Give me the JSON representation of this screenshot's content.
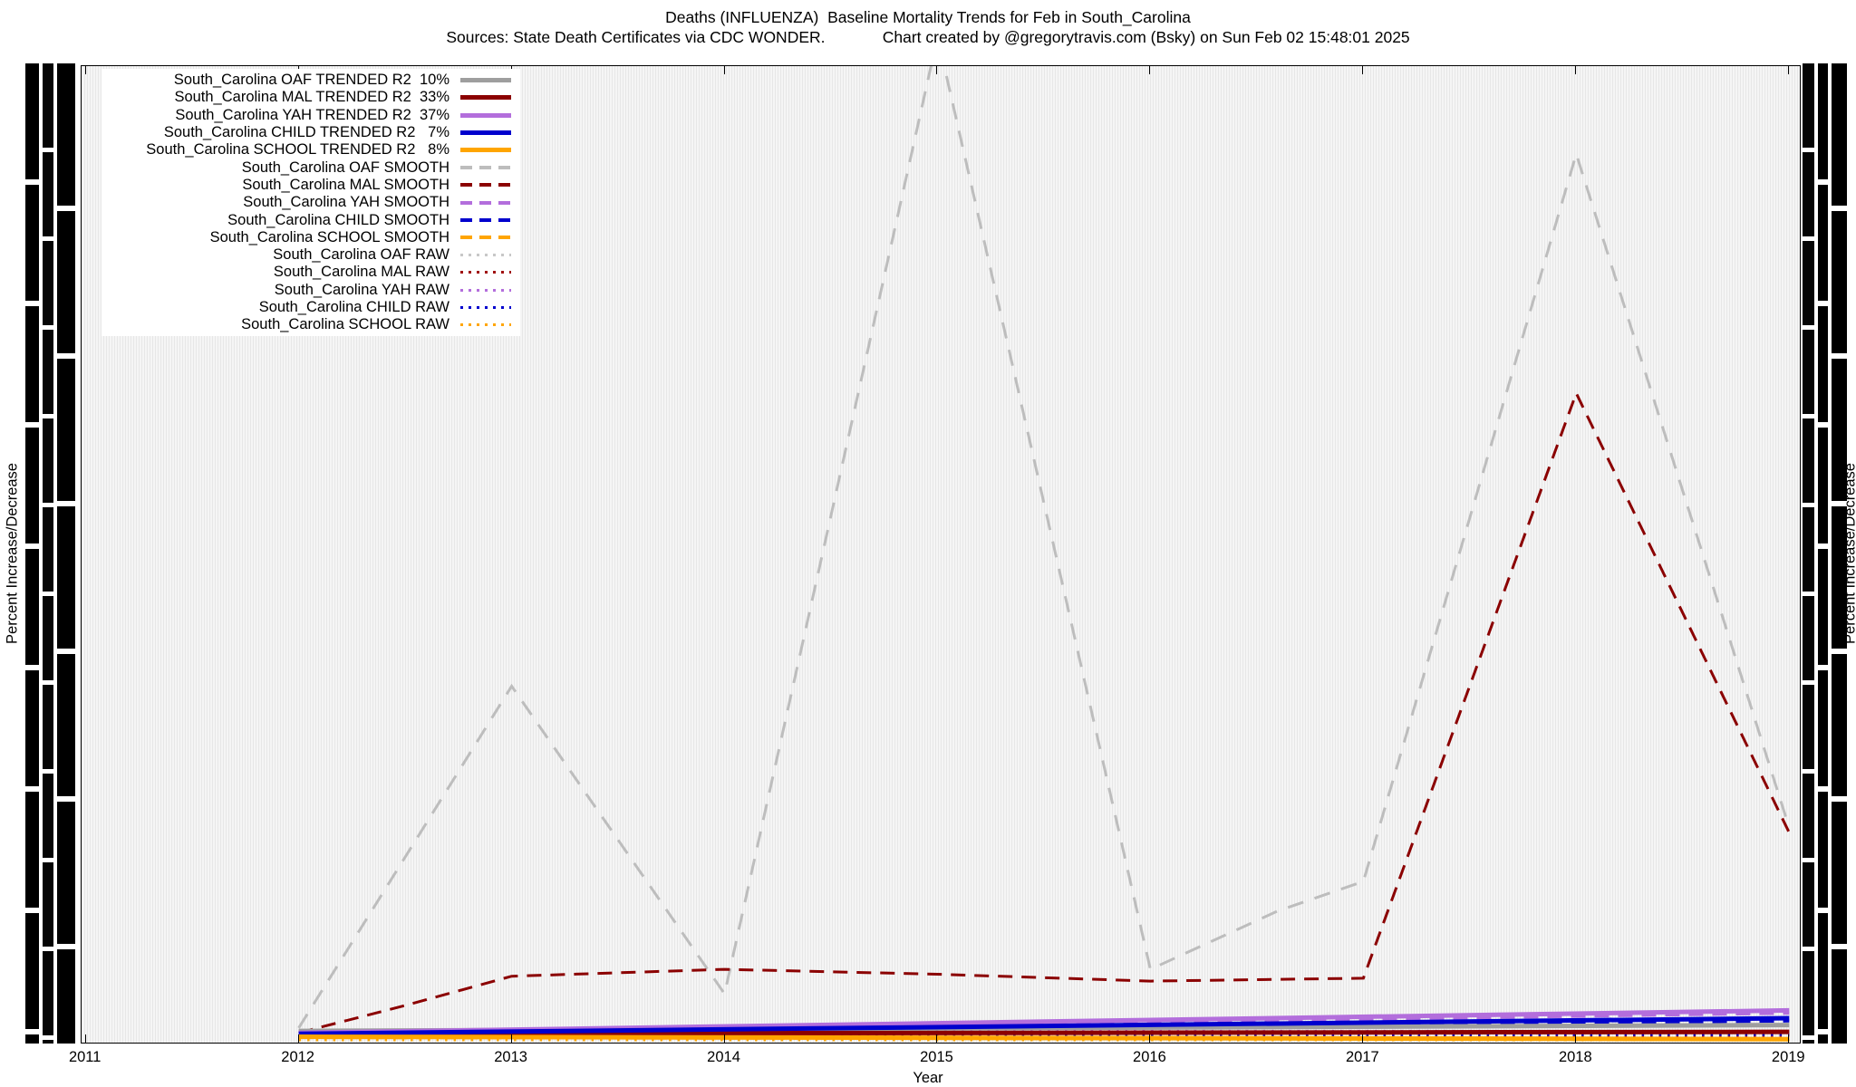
{
  "titles": {
    "title": "Deaths (INFLUENZA)  Baseline Mortality Trends for Feb in South_Carolina",
    "subtitle": "Sources: State Death Certificates via CDC WONDER.             Chart created by @gregorytravis.com (Bsky) on Sun Feb 02 15:48:01 2025"
  },
  "axes": {
    "xlabel": "Year",
    "ylabel_left": "Percent Increase/Decrease",
    "ylabel_right": "Percent Increase/Decrease"
  },
  "chart_data": {
    "type": "line",
    "title": "Deaths (INFLUENZA)  Baseline Mortality Trends for Feb in South_Carolina",
    "subtitle": "Sources: State Death Certificates via CDC WONDER.  Chart created by @gregorytravis.com (Bsky) on Sun Feb 02 15:48:01 2025",
    "xlabel": "Year",
    "ylabel": "Percent Increase/Decrease",
    "x_ticks": [
      2011,
      2012,
      2013,
      2014,
      2015,
      2016,
      2017,
      2018,
      2019
    ],
    "xlim": [
      2010.98,
      2019.05
    ],
    "ylim": [
      0,
      100
    ],
    "y_units_note": "y values normalized 0-100 = fraction of plot height; y tick labels overprinted/illegible in source",
    "grid": "fine vertical striping",
    "legend_position": "top-left",
    "series": [
      {
        "id": "oaf-trended",
        "label": "South_Carolina OAF TRENDED R2  10%",
        "color": "#9e9e9e",
        "width": 5,
        "dash": "",
        "legend_style": "solid",
        "z": 3,
        "x": [
          2012,
          2019
        ],
        "y": [
          1.2,
          1.8
        ]
      },
      {
        "id": "mal-trended",
        "label": "South_Carolina MAL TRENDED R2  33%",
        "color": "#8b0000",
        "width": 5,
        "dash": "",
        "legend_style": "solid",
        "z": 3,
        "x": [
          2012,
          2019
        ],
        "y": [
          0.9,
          1.1
        ]
      },
      {
        "id": "yah-trended",
        "label": "South_Carolina YAH TRENDED R2  37%",
        "color": "#b36edc",
        "width": 5,
        "dash": "",
        "legend_style": "solid",
        "z": 3,
        "x": [
          2012,
          2019
        ],
        "y": [
          1.0,
          3.3
        ]
      },
      {
        "id": "child-trended",
        "label": "South_Carolina CHILD TRENDED R2   7%",
        "color": "#0000cd",
        "width": 5,
        "dash": "",
        "legend_style": "solid",
        "z": 3,
        "x": [
          2012,
          2019
        ],
        "y": [
          0.9,
          2.5
        ]
      },
      {
        "id": "school-trended",
        "label": "South_Carolina SCHOOL TRENDED R2   8%",
        "color": "#ffa500",
        "width": 5,
        "dash": "",
        "legend_style": "solid",
        "z": 3,
        "x": [
          2012,
          2019
        ],
        "y": [
          0.6,
          0.35
        ]
      },
      {
        "id": "oaf-smooth",
        "label": "South_Carolina OAF SMOOTH",
        "color": "#bdbdbd",
        "width": 3,
        "dash": "18 13",
        "legend_style": "dashed",
        "z": 1,
        "x": [
          2012,
          2013,
          2014,
          2015,
          2016,
          2016.6,
          2017,
          2018,
          2019
        ],
        "y": [
          1.5,
          36.5,
          5,
          103,
          7.5,
          13.5,
          16.5,
          91,
          22
        ]
      },
      {
        "id": "mal-smooth",
        "label": "South_Carolina MAL SMOOTH",
        "color": "#8b0000",
        "width": 3,
        "dash": "16 10",
        "legend_style": "dashed",
        "z": 1,
        "x": [
          2012,
          2012.5,
          2013,
          2014,
          2015,
          2016,
          2017,
          2018,
          2019
        ],
        "y": [
          1.0,
          3.8,
          6.8,
          7.5,
          7.0,
          6.3,
          6.6,
          66.5,
          21.5
        ]
      },
      {
        "id": "yah-smooth",
        "label": "South_Carolina YAH SMOOTH",
        "color": "#b36edc",
        "width": 3,
        "dash": "16 10",
        "legend_style": "dashed",
        "z": 1,
        "x": [
          2012,
          2019
        ],
        "y": [
          0.8,
          3.0
        ]
      },
      {
        "id": "child-smooth",
        "label": "South_Carolina CHILD SMOOTH",
        "color": "#0000cd",
        "width": 3,
        "dash": "16 10",
        "legend_style": "dashed",
        "z": 1,
        "x": [
          2012,
          2019
        ],
        "y": [
          0.8,
          2.2
        ]
      },
      {
        "id": "school-smooth",
        "label": "South_Carolina SCHOOL SMOOTH",
        "color": "#ffa500",
        "width": 3,
        "dash": "16 10",
        "legend_style": "dashed",
        "z": 1,
        "x": [
          2012,
          2019
        ],
        "y": [
          0.5,
          0.3
        ]
      },
      {
        "id": "oaf-raw",
        "label": "South_Carolina OAF RAW",
        "color": "#c8c8c8",
        "width": 2.5,
        "dash": "2.5 7",
        "legend_style": "dotted",
        "z": 2,
        "x": [
          2012,
          2019
        ],
        "y": [
          1.0,
          1.0
        ]
      },
      {
        "id": "mal-raw",
        "label": "South_Carolina MAL RAW",
        "color": "#a01010",
        "width": 2.5,
        "dash": "2.5 7",
        "legend_style": "dotted",
        "z": 2,
        "x": [
          2012,
          2019
        ],
        "y": [
          0.7,
          0.7
        ]
      },
      {
        "id": "yah-raw",
        "label": "South_Carolina YAH RAW",
        "color": "#b36edc",
        "width": 2.5,
        "dash": "2.5 7",
        "legend_style": "dotted",
        "z": 2,
        "x": [
          2012,
          2019
        ],
        "y": [
          1.2,
          1.2
        ]
      },
      {
        "id": "child-raw",
        "label": "South_Carolina CHILD RAW",
        "color": "#0000cd",
        "width": 2.5,
        "dash": "2.5 7",
        "legend_style": "dotted",
        "z": 2,
        "x": [
          2012,
          2019
        ],
        "y": [
          0.8,
          0.8
        ]
      },
      {
        "id": "school-raw",
        "label": "South_Carolina SCHOOL RAW",
        "color": "#ffa500",
        "width": 2.5,
        "dash": "2.5 7",
        "legend_style": "dotted",
        "z": 2,
        "x": [
          2012,
          2019
        ],
        "y": [
          0.25,
          0.25
        ]
      }
    ]
  }
}
